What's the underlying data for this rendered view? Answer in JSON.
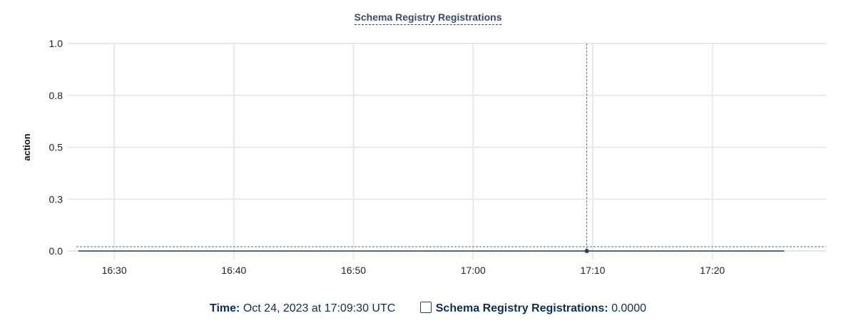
{
  "chart_data": {
    "type": "line",
    "title": "Schema Registry Registrations",
    "ylabel": "action",
    "xlabel": "",
    "ylim": [
      0,
      1
    ],
    "xlim": [
      "16:26:50",
      "17:29:30"
    ],
    "y_ticks": [
      {
        "value": 0,
        "label": "0.0"
      },
      {
        "value": 0.25,
        "label": "0.3"
      },
      {
        "value": 0.5,
        "label": "0.5"
      },
      {
        "value": 0.75,
        "label": "0.8"
      },
      {
        "value": 1,
        "label": "1.0"
      }
    ],
    "x_ticks": [
      "16:30",
      "16:40",
      "16:50",
      "17:00",
      "17:10",
      "17:20"
    ],
    "grid": true,
    "series": [
      {
        "color": "#2c3e5c",
        "x": [
          "16:27:00",
          "17:09:30",
          "17:26:00"
        ],
        "values": [
          0,
          0,
          0
        ]
      }
    ],
    "hover": {
      "x": "17:09:30",
      "value": 0
    }
  },
  "legend": {
    "time_label": "Time:",
    "time_value": "Oct 24, 2023 at 17:09:30 UTC",
    "series_label": "Schema Registry Registrations:",
    "series_value": "0.0000"
  }
}
